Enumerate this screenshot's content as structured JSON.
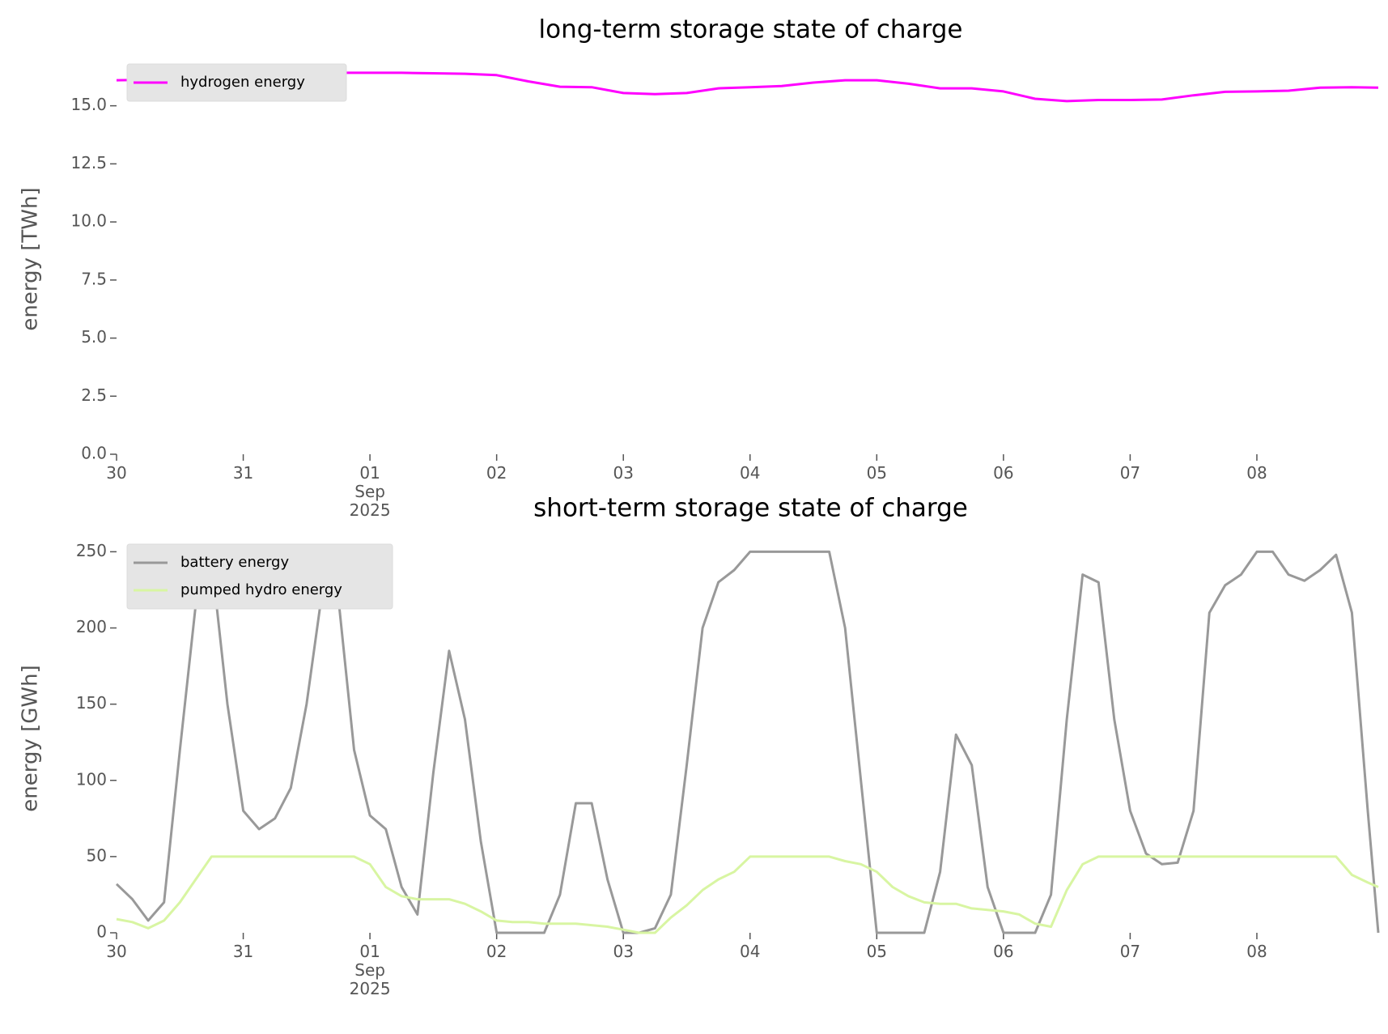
{
  "chart_data": [
    {
      "type": "line",
      "title": "long-term storage state of charge",
      "y_label": "energy [TWh]",
      "legend": "upper left",
      "x": [
        "2025-08-30T00:00",
        "2025-08-30T06:00",
        "2025-08-30T12:00",
        "2025-08-30T18:00",
        "2025-08-31T00:00",
        "2025-08-31T06:00",
        "2025-08-31T12:00",
        "2025-08-31T18:00",
        "2025-09-01T00:00",
        "2025-09-01T06:00",
        "2025-09-01T12:00",
        "2025-09-01T18:00",
        "2025-09-02T00:00",
        "2025-09-02T06:00",
        "2025-09-02T12:00",
        "2025-09-02T18:00",
        "2025-09-03T00:00",
        "2025-09-03T06:00",
        "2025-09-03T12:00",
        "2025-09-03T18:00",
        "2025-09-04T00:00",
        "2025-09-04T06:00",
        "2025-09-04T12:00",
        "2025-09-04T18:00",
        "2025-09-05T00:00",
        "2025-09-05T06:00",
        "2025-09-05T12:00",
        "2025-09-05T18:00",
        "2025-09-06T00:00",
        "2025-09-06T06:00",
        "2025-09-06T12:00",
        "2025-09-06T18:00",
        "2025-09-07T00:00",
        "2025-09-07T06:00",
        "2025-09-07T12:00",
        "2025-09-07T18:00",
        "2025-09-08T00:00",
        "2025-09-08T06:00",
        "2025-09-08T12:00",
        "2025-09-08T18:00",
        "2025-09-08T23:00"
      ],
      "series": [
        {
          "name": "hydrogen energy",
          "color": "#ff00ff",
          "values": [
            16.1,
            16.12,
            16.2,
            16.28,
            16.35,
            16.4,
            16.42,
            16.42,
            16.42,
            16.42,
            16.4,
            16.38,
            16.32,
            16.05,
            15.82,
            15.8,
            15.55,
            15.5,
            15.55,
            15.75,
            15.8,
            15.85,
            16.0,
            16.1,
            16.1,
            15.95,
            15.75,
            15.75,
            15.62,
            15.3,
            15.2,
            15.25,
            15.25,
            15.27,
            15.45,
            15.6,
            15.62,
            15.65,
            15.78,
            15.8,
            15.78
          ]
        }
      ],
      "xlim": [
        "2025-08-30T00:00",
        "2025-09-08T23:00"
      ],
      "xticks": [
        {
          "value": "2025-08-30",
          "label": "30"
        },
        {
          "value": "2025-08-31",
          "label": "31"
        },
        {
          "value": "2025-09-01",
          "label": "01\nSep\n2025"
        },
        {
          "value": "2025-09-02",
          "label": "02"
        },
        {
          "value": "2025-09-03",
          "label": "03"
        },
        {
          "value": "2025-09-04",
          "label": "04"
        },
        {
          "value": "2025-09-05",
          "label": "05"
        },
        {
          "value": "2025-09-06",
          "label": "06"
        },
        {
          "value": "2025-09-07",
          "label": "07"
        },
        {
          "value": "2025-09-08",
          "label": "08"
        }
      ],
      "ylim": [
        0,
        16.8
      ],
      "yticks": [
        {
          "value": 0,
          "label": "0.0"
        },
        2.5,
        {
          "value": 5,
          "label": "5.0"
        },
        7.5,
        {
          "value": 10,
          "label": "10.0"
        },
        12.5,
        {
          "value": 15,
          "label": "15.0"
        }
      ]
    },
    {
      "type": "line",
      "title": "short-term storage state of charge",
      "y_label": "energy [GWh]",
      "legend": "upper left",
      "x": [
        "2025-08-30T00:00",
        "2025-08-30T03:00",
        "2025-08-30T06:00",
        "2025-08-30T09:00",
        "2025-08-30T12:00",
        "2025-08-30T15:00",
        "2025-08-30T18:00",
        "2025-08-30T21:00",
        "2025-08-31T00:00",
        "2025-08-31T03:00",
        "2025-08-31T06:00",
        "2025-08-31T09:00",
        "2025-08-31T12:00",
        "2025-08-31T15:00",
        "2025-08-31T18:00",
        "2025-08-31T21:00",
        "2025-09-01T00:00",
        "2025-09-01T03:00",
        "2025-09-01T06:00",
        "2025-09-01T09:00",
        "2025-09-01T12:00",
        "2025-09-01T15:00",
        "2025-09-01T18:00",
        "2025-09-01T21:00",
        "2025-09-02T00:00",
        "2025-09-02T03:00",
        "2025-09-02T06:00",
        "2025-09-02T09:00",
        "2025-09-02T12:00",
        "2025-09-02T15:00",
        "2025-09-02T18:00",
        "2025-09-02T21:00",
        "2025-09-03T00:00",
        "2025-09-03T03:00",
        "2025-09-03T06:00",
        "2025-09-03T09:00",
        "2025-09-03T12:00",
        "2025-09-03T15:00",
        "2025-09-03T18:00",
        "2025-09-03T21:00",
        "2025-09-04T00:00",
        "2025-09-04T03:00",
        "2025-09-04T06:00",
        "2025-09-04T09:00",
        "2025-09-04T12:00",
        "2025-09-04T15:00",
        "2025-09-04T18:00",
        "2025-09-04T21:00",
        "2025-09-05T00:00",
        "2025-09-05T03:00",
        "2025-09-05T06:00",
        "2025-09-05T09:00",
        "2025-09-05T12:00",
        "2025-09-05T15:00",
        "2025-09-05T18:00",
        "2025-09-05T21:00",
        "2025-09-06T00:00",
        "2025-09-06T03:00",
        "2025-09-06T06:00",
        "2025-09-06T09:00",
        "2025-09-06T12:00",
        "2025-09-06T15:00",
        "2025-09-06T18:00",
        "2025-09-06T21:00",
        "2025-09-07T00:00",
        "2025-09-07T03:00",
        "2025-09-07T06:00",
        "2025-09-07T09:00",
        "2025-09-07T12:00",
        "2025-09-07T15:00",
        "2025-09-07T18:00",
        "2025-09-07T21:00",
        "2025-09-08T00:00",
        "2025-09-08T03:00",
        "2025-09-08T06:00",
        "2025-09-08T09:00",
        "2025-09-08T12:00",
        "2025-09-08T15:00",
        "2025-09-08T18:00",
        "2025-09-08T21:00",
        "2025-09-08T23:00"
      ],
      "series": [
        {
          "name": "battery energy",
          "color": "#999999",
          "values": [
            32,
            22,
            8,
            20,
            120,
            215,
            245,
            150,
            80,
            68,
            75,
            95,
            150,
            225,
            220,
            120,
            77,
            68,
            30,
            12,
            105,
            185,
            140,
            60,
            0,
            0,
            0,
            0,
            25,
            85,
            85,
            35,
            0,
            0,
            3,
            25,
            110,
            200,
            230,
            238,
            250,
            250,
            250,
            250,
            250,
            250,
            200,
            100,
            0,
            0,
            0,
            0,
            40,
            130,
            110,
            30,
            0,
            0,
            0,
            25,
            140,
            235,
            230,
            140,
            80,
            52,
            45,
            46,
            80,
            210,
            228,
            235,
            250,
            250,
            235,
            231,
            238,
            248,
            210,
            80,
            0
          ]
        },
        {
          "name": "pumped hydro energy",
          "color": "#d8f5a2",
          "values": [
            9,
            7,
            3,
            8,
            20,
            35,
            50,
            50,
            50,
            50,
            50,
            50,
            50,
            50,
            50,
            50,
            45,
            30,
            24,
            22,
            22,
            22,
            19,
            14,
            8,
            7,
            7,
            6,
            6,
            6,
            5,
            4,
            2,
            0,
            0,
            10,
            18,
            28,
            35,
            40,
            50,
            50,
            50,
            50,
            50,
            50,
            47,
            45,
            40,
            30,
            24,
            20,
            19,
            19,
            16,
            15,
            14,
            12,
            6,
            4,
            28,
            45,
            50,
            50,
            50,
            50,
            50,
            50,
            50,
            50,
            50,
            50,
            50,
            50,
            50,
            50,
            50,
            50,
            38,
            33,
            30
          ]
        }
      ],
      "xlim": [
        "2025-08-30T00:00",
        "2025-09-08T23:00"
      ],
      "xticks": [
        {
          "value": "2025-08-30",
          "label": "30"
        },
        {
          "value": "2025-08-31",
          "label": "31"
        },
        {
          "value": "2025-09-01",
          "label": "01\nSep\n2025"
        },
        {
          "value": "2025-09-02",
          "label": "02"
        },
        {
          "value": "2025-09-03",
          "label": "03"
        },
        {
          "value": "2025-09-04",
          "label": "04"
        },
        {
          "value": "2025-09-05",
          "label": "05"
        },
        {
          "value": "2025-09-06",
          "label": "06"
        },
        {
          "value": "2025-09-07",
          "label": "07"
        },
        {
          "value": "2025-09-08",
          "label": "08"
        }
      ],
      "ylim": [
        0,
        255
      ],
      "yticks": [
        0,
        50,
        100,
        150,
        200,
        250
      ]
    }
  ]
}
